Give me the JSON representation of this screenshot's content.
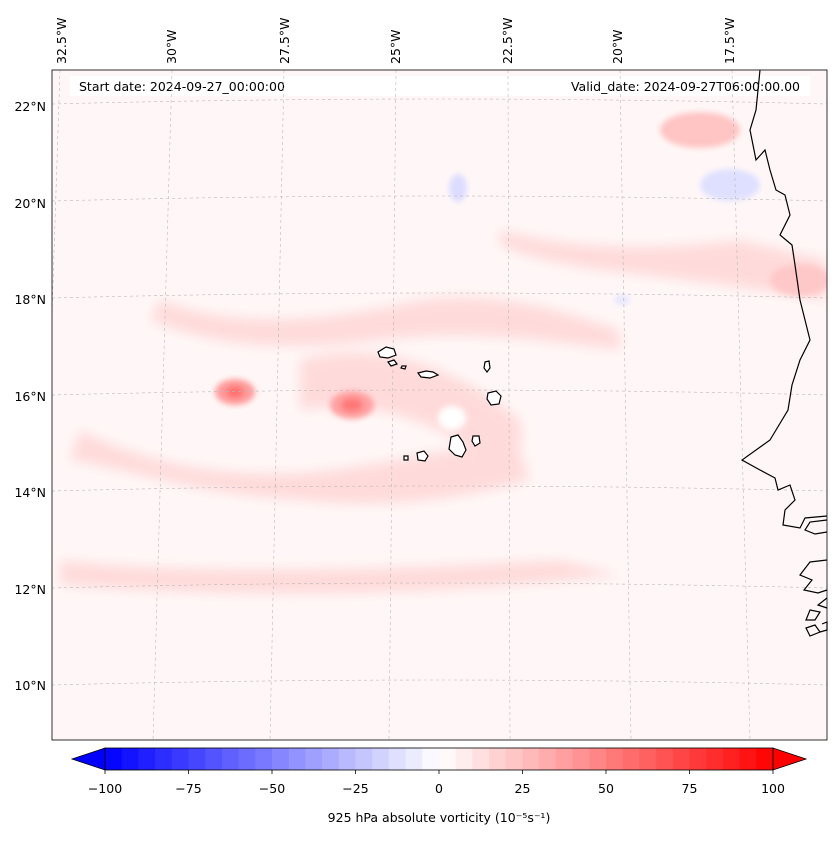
{
  "map": {
    "start_label": "Start date: 2024-09-27_00:00:00",
    "valid_label": "Valid_date: 2024-09-27T06:00:00.00",
    "lon_labels": [
      "32.5°W",
      "30°W",
      "27.5°W",
      "25°W",
      "22.5°W",
      "20°W",
      "17.5°W"
    ],
    "lat_labels": [
      "22°N",
      "20°N",
      "18°N",
      "16°N",
      "14°N",
      "12°N",
      "10°N"
    ],
    "gridlines": "dashed",
    "coastline_color": "#000000"
  },
  "colorbar": {
    "label": "925 hPa absolute vorticity (10⁻⁵s⁻¹)",
    "min": -100,
    "max": 100,
    "tick_labels": [
      "−100",
      "−75",
      "−50",
      "−25",
      "0",
      "25",
      "50",
      "75",
      "100"
    ],
    "colormap": "bwr",
    "extend": "both",
    "neg_color": "#0000ff",
    "mid_color": "#ffffff",
    "pos_color": "#ff0000"
  }
}
